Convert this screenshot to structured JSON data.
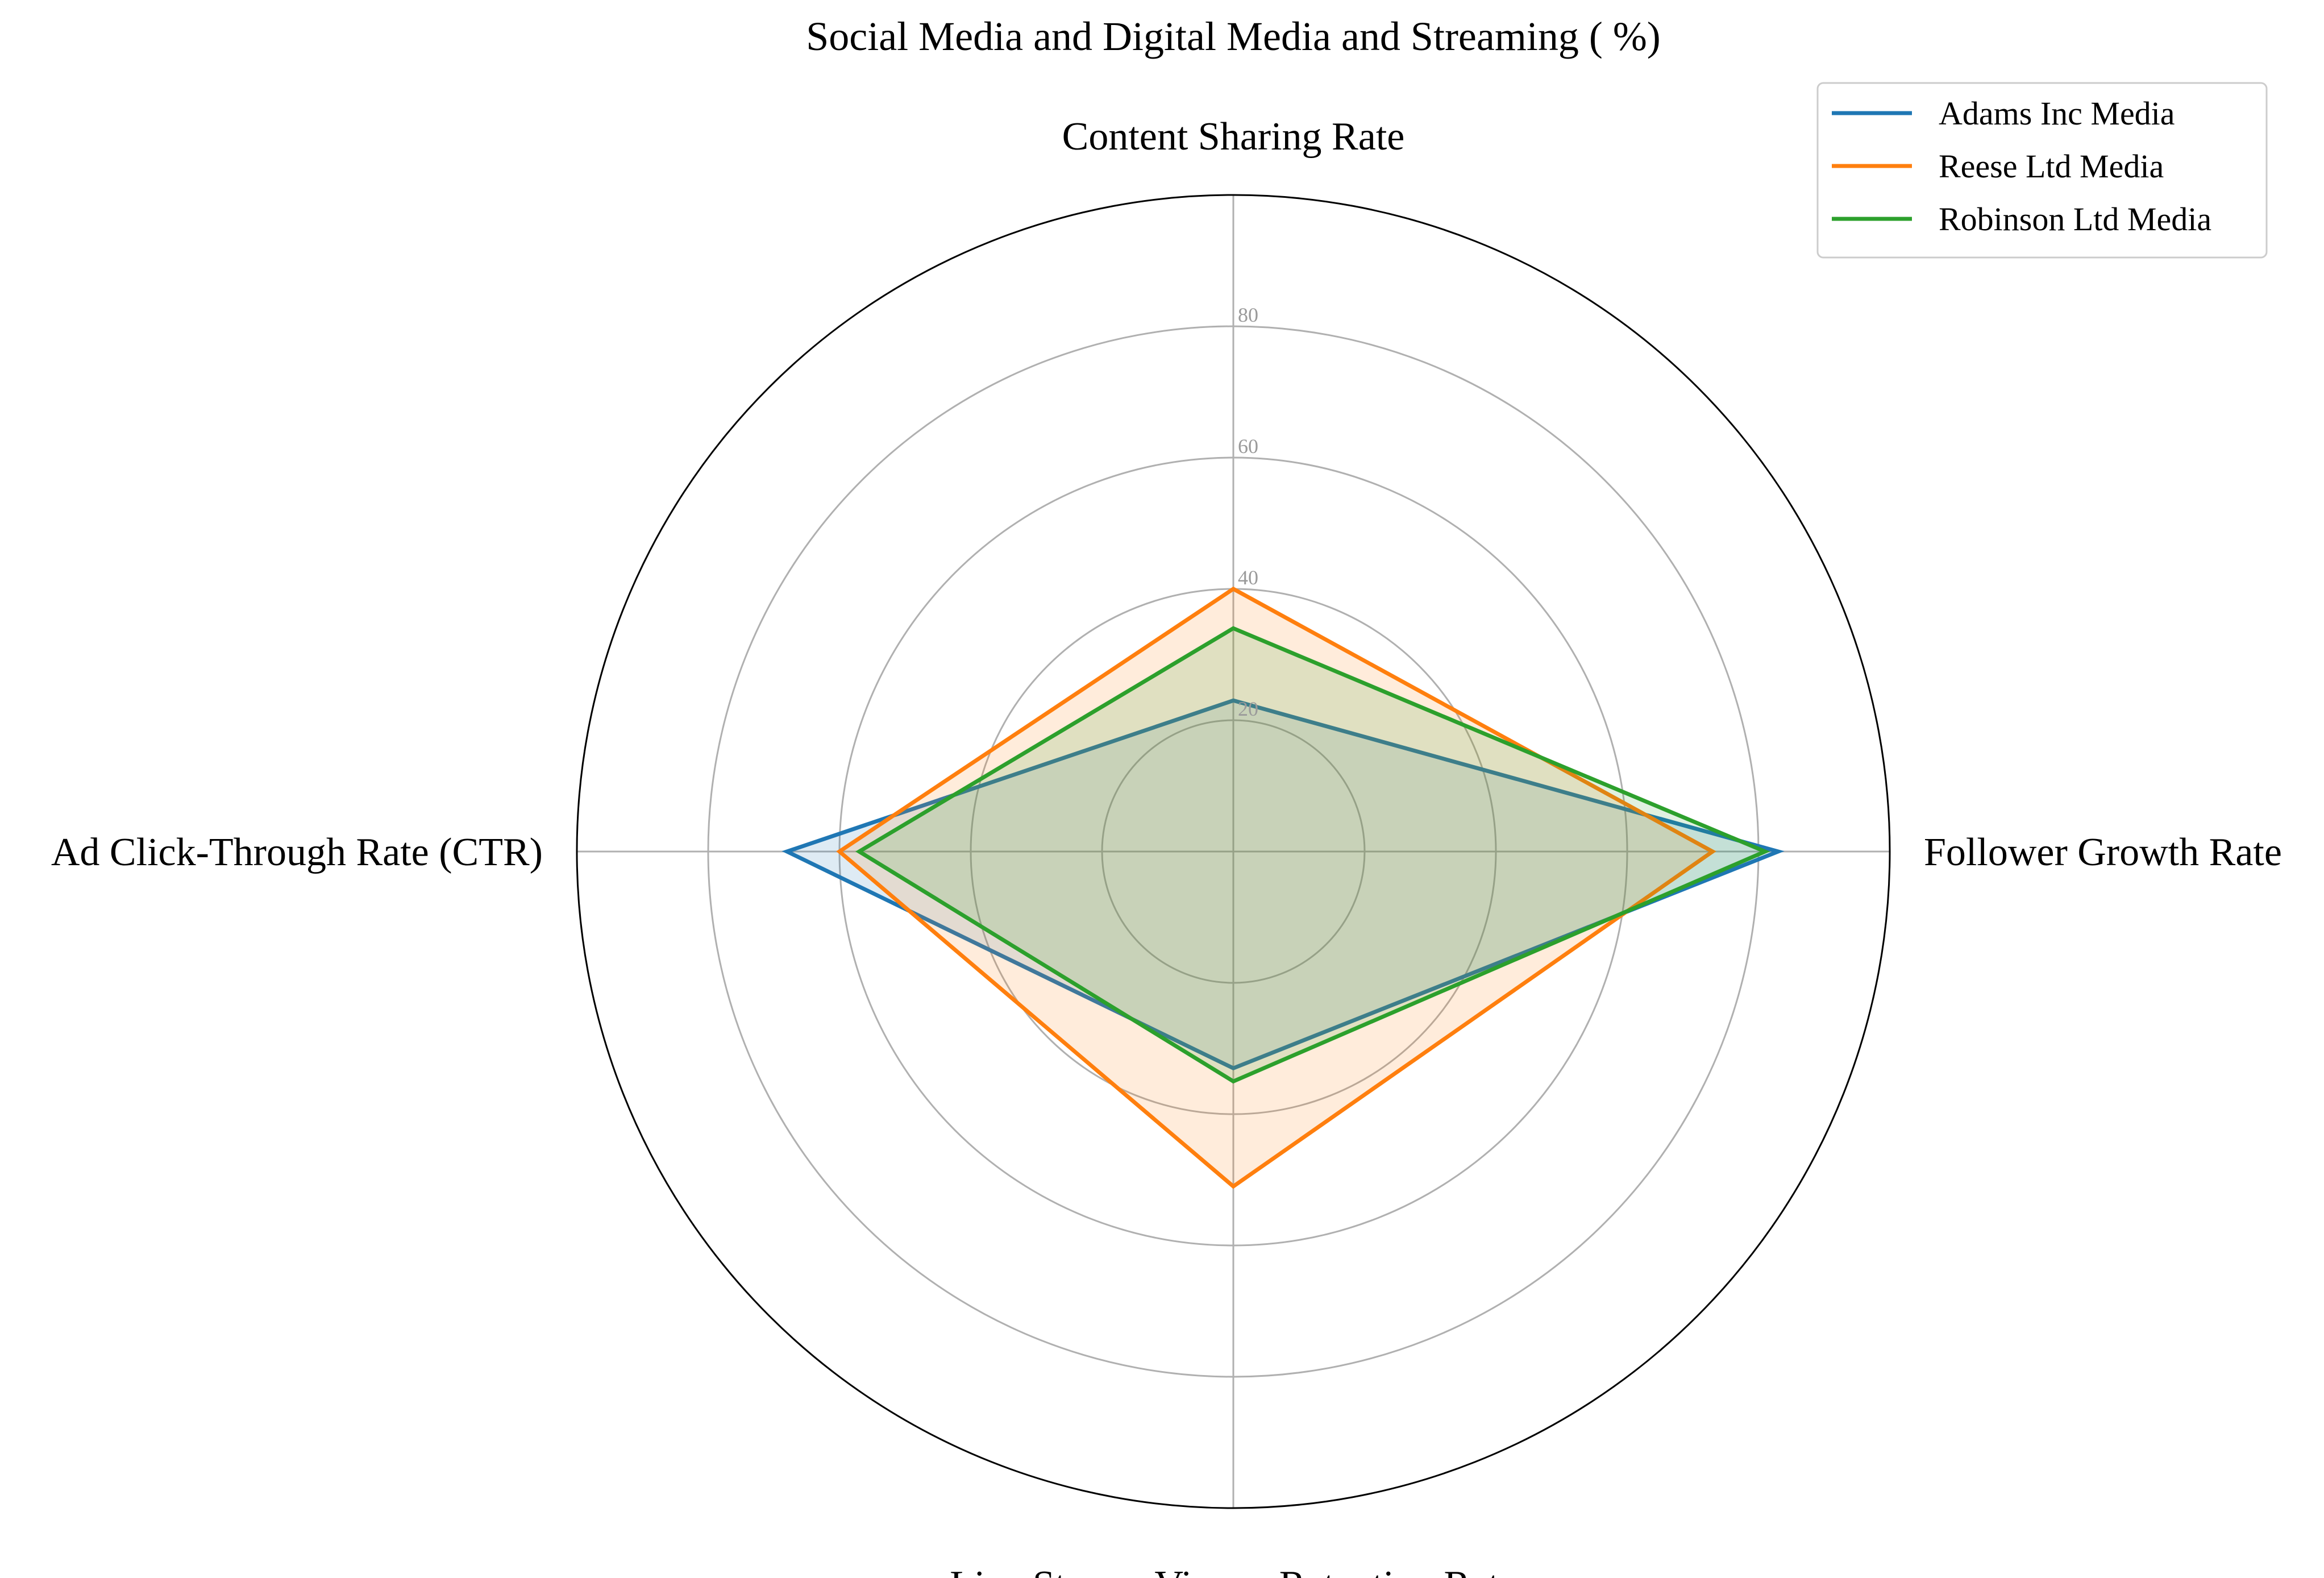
{
  "chart_data": {
    "type": "radar",
    "title": "Social Media and Digital Media and Streaming ( %)",
    "axes": [
      "Content Sharing Rate",
      "Follower Growth Rate",
      "Live Stream Viewer Retention Rate",
      "Ad Click-Through Rate (CTR)"
    ],
    "rlim": [
      0,
      100
    ],
    "rticks": [
      20,
      40,
      60,
      80
    ],
    "rtick_labels": [
      "20",
      "40",
      "60",
      "80"
    ],
    "grid": true,
    "legend_position": "top-right",
    "series": [
      {
        "name": "Adams Inc Media",
        "color": "#1f77b4",
        "values": [
          23,
          83,
          33,
          68
        ]
      },
      {
        "name": "Reese Ltd Media",
        "color": "#ff7f0e",
        "values": [
          40,
          73,
          51,
          60
        ]
      },
      {
        "name": "Robinson Ltd Media",
        "color": "#2ca02c",
        "values": [
          34,
          81,
          35,
          57
        ]
      }
    ]
  }
}
